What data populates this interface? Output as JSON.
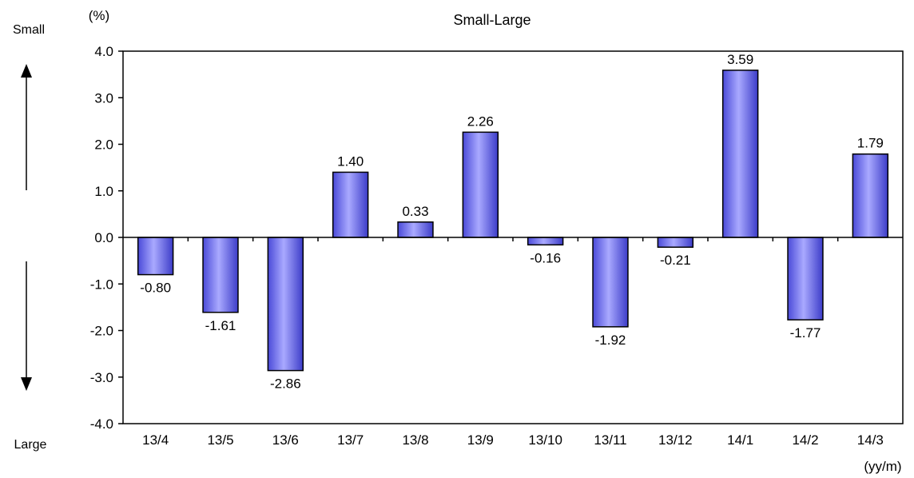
{
  "chart_data": {
    "type": "bar",
    "title": "Small-Large",
    "ylabel": "(%)",
    "xlabel": "(yy/m)",
    "side_labels": {
      "top": "Small",
      "bottom": "Large"
    },
    "categories": [
      "13/4",
      "13/5",
      "13/6",
      "13/7",
      "13/8",
      "13/9",
      "13/10",
      "13/11",
      "13/12",
      "14/1",
      "14/2",
      "14/3"
    ],
    "values": [
      -0.8,
      -1.61,
      -2.86,
      1.4,
      0.33,
      2.26,
      -0.16,
      -1.92,
      -0.21,
      3.59,
      -1.77,
      1.79
    ],
    "value_labels": [
      "-0.80",
      "-1.61",
      "-2.86",
      "1.40",
      "0.33",
      "2.26",
      "-0.16",
      "-1.92",
      "-0.21",
      "3.59",
      "-1.77",
      "1.79"
    ],
    "ylim": [
      -4.0,
      4.0
    ],
    "yticks": [
      "4.0",
      "3.0",
      "2.0",
      "1.0",
      "0.0",
      "-1.0",
      "-2.0",
      "-3.0",
      "-4.0"
    ],
    "grid": false,
    "bar_color": "#7b7bf0"
  }
}
